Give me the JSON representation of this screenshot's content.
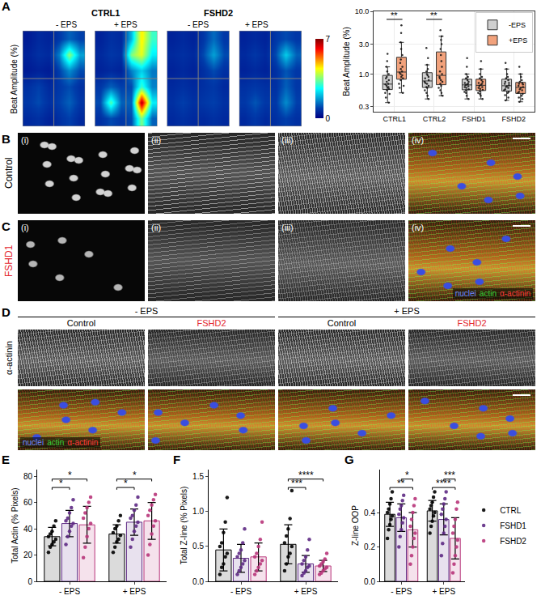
{
  "chart_data": [
    {
      "letter": "A",
      "type": "heatmap",
      "ylabel": "Beat Amplitude (%)",
      "zlim": [
        0,
        7
      ],
      "zticks": [
        0,
        7
      ],
      "groups": [
        {
          "title": "CTRL1",
          "panels": [
            {
              "title": "- EPS",
              "cells": [
                [
                  0.4,
                  0.6,
                  0.5,
                  0.8,
                  1.2,
                  0.9
                ],
                [
                  0.5,
                  0.7,
                  0.6,
                  1.5,
                  3.6,
                  1.8
                ],
                [
                  0.4,
                  0.5,
                  0.4,
                  0.9,
                  1.6,
                  1.0
                ],
                [
                  0.7,
                  0.9,
                  0.6,
                  0.8,
                  1.0,
                  0.7
                ],
                [
                  0.8,
                  1.0,
                  0.7,
                  0.9,
                  1.2,
                  0.8
                ],
                [
                  0.6,
                  0.7,
                  0.5,
                  0.7,
                  0.9,
                  0.6
                ]
              ]
            },
            {
              "title": "+ EPS",
              "cells": [
                [
                  0.5,
                  0.7,
                  0.6,
                  2.0,
                  4.5,
                  3.0
                ],
                [
                  0.6,
                  0.8,
                  0.7,
                  3.5,
                  4.2,
                  2.5
                ],
                [
                  0.5,
                  0.6,
                  0.5,
                  1.5,
                  2.2,
                  1.4
                ],
                [
                  0.8,
                  1.2,
                  0.9,
                  1.0,
                  3.0,
                  1.5
                ],
                [
                  1.0,
                  3.2,
                  1.2,
                  1.2,
                  6.8,
                  2.5
                ],
                [
                  0.7,
                  1.0,
                  0.8,
                  1.0,
                  3.5,
                  1.2
                ]
              ]
            }
          ]
        },
        {
          "title": "FSHD2",
          "panels": [
            {
              "title": "- EPS",
              "cells": [
                [
                  0.5,
                  0.6,
                  0.5,
                  0.8,
                  1.3,
                  0.8
                ],
                [
                  0.6,
                  0.7,
                  0.6,
                  1.0,
                  1.8,
                  1.0
                ],
                [
                  0.5,
                  0.6,
                  0.5,
                  0.7,
                  1.0,
                  0.7
                ],
                [
                  0.6,
                  0.7,
                  0.6,
                  0.7,
                  0.8,
                  0.6
                ],
                [
                  0.7,
                  0.9,
                  0.7,
                  0.8,
                  0.9,
                  0.7
                ],
                [
                  0.6,
                  0.7,
                  0.6,
                  0.6,
                  0.7,
                  0.6
                ]
              ]
            },
            {
              "title": "+ EPS",
              "cells": [
                [
                  0.5,
                  0.6,
                  0.5,
                  0.8,
                  1.0,
                  0.8
                ],
                [
                  0.6,
                  0.8,
                  0.6,
                  1.0,
                  2.2,
                  1.2
                ],
                [
                  0.5,
                  0.6,
                  0.5,
                  0.7,
                  1.1,
                  0.8
                ],
                [
                  0.7,
                  0.8,
                  0.7,
                  0.7,
                  1.2,
                  0.8
                ],
                [
                  0.8,
                  1.1,
                  0.8,
                  0.8,
                  1.6,
                  0.9
                ],
                [
                  0.6,
                  0.8,
                  0.6,
                  0.7,
                  0.9,
                  0.7
                ]
              ]
            }
          ]
        }
      ]
    },
    {
      "type": "box",
      "ylabel": "Beat Amplitude (%)",
      "log": "y",
      "grid": true,
      "legend": "upper right",
      "categories": [
        "CTRL1",
        "CTRL2",
        "FSHD1",
        "FSHD2"
      ],
      "ylim": [
        0.25,
        10
      ],
      "yticks": [
        0.3,
        {
          "value": 1,
          "label": "1.0"
        },
        {
          "value": 3,
          "label": "3.0"
        },
        {
          "value": 10,
          "label": "10.0"
        }
      ],
      "series": [
        {
          "name": "-EPS",
          "color": "#cfcfcf",
          "values": [
            [
              0.35,
              0.42,
              0.48,
              0.5,
              0.55,
              0.58,
              0.6,
              0.62,
              0.65,
              0.68,
              0.7,
              0.75,
              0.8,
              0.85,
              0.9,
              1.0,
              1.1,
              1.3,
              1.6,
              2.1
            ],
            [
              0.4,
              0.45,
              0.5,
              0.55,
              0.6,
              0.62,
              0.65,
              0.7,
              0.72,
              0.75,
              0.8,
              0.85,
              0.9,
              0.95,
              1.0,
              1.1,
              1.2,
              1.4,
              1.8,
              2.6
            ],
            [
              0.4,
              0.45,
              0.5,
              0.52,
              0.55,
              0.57,
              0.6,
              0.62,
              0.64,
              0.66,
              0.68,
              0.7,
              0.72,
              0.75,
              0.8,
              0.85,
              0.9,
              1.0,
              1.3,
              1.8
            ],
            [
              0.38,
              0.42,
              0.46,
              0.5,
              0.52,
              0.55,
              0.57,
              0.6,
              0.62,
              0.64,
              0.66,
              0.7,
              0.72,
              0.75,
              0.8,
              0.85,
              0.9,
              1.0,
              1.2,
              1.5
            ]
          ]
        },
        {
          "name": "+EPS",
          "color": "#f2a27c",
          "values": [
            [
              0.5,
              0.6,
              0.65,
              0.7,
              0.8,
              0.85,
              0.9,
              0.95,
              1.0,
              1.05,
              1.1,
              1.2,
              1.3,
              1.5,
              1.7,
              2.0,
              2.5,
              3.2,
              4.5,
              6.0
            ],
            [
              0.45,
              0.5,
              0.55,
              0.6,
              0.65,
              0.7,
              0.75,
              0.8,
              0.85,
              0.9,
              1.0,
              1.1,
              1.3,
              1.6,
              2.0,
              2.5,
              3.0,
              3.5,
              4.0,
              5.0
            ],
            [
              0.4,
              0.45,
              0.48,
              0.5,
              0.53,
              0.56,
              0.58,
              0.6,
              0.62,
              0.65,
              0.67,
              0.7,
              0.72,
              0.75,
              0.8,
              0.85,
              0.9,
              1.0,
              1.2,
              1.6
            ],
            [
              0.36,
              0.4,
              0.42,
              0.45,
              0.48,
              0.5,
              0.52,
              0.55,
              0.57,
              0.6,
              0.62,
              0.65,
              0.68,
              0.7,
              0.72,
              0.75,
              0.8,
              0.9,
              1.0,
              1.3
            ]
          ]
        }
      ],
      "significance": [
        {
          "category": "CTRL1",
          "label": "**"
        },
        {
          "category": "CTRL2",
          "label": "**"
        }
      ]
    },
    {
      "letter": "E",
      "type": "bar",
      "ylabel": "Total Actin (% Pixels)",
      "grid": false,
      "categories": [
        "- EPS",
        "+ EPS"
      ],
      "ylim": [
        0,
        85
      ],
      "yticks": [
        0,
        20,
        40,
        60,
        80
      ],
      "series": [
        {
          "name": "CTRL",
          "color": "#000000",
          "values": [
            34,
            36
          ],
          "error": [
            7,
            7
          ],
          "points": [
            [
              22,
              26,
              28,
              30,
              32,
              34,
              36,
              38,
              42,
              46
            ],
            [
              22,
              26,
              30,
              32,
              35,
              37,
              40,
              42,
              46,
              50
            ]
          ]
        },
        {
          "name": "FSHD1",
          "color": "#5e2a84",
          "values": [
            44,
            45
          ],
          "error": [
            10,
            10
          ],
          "points": [
            [
              28,
              34,
              38,
              42,
              44,
              46,
              48,
              52,
              56,
              62
            ],
            [
              26,
              32,
              38,
              42,
              45,
              48,
              50,
              54,
              58,
              64
            ]
          ]
        },
        {
          "name": "FSHD2",
          "color": "#b8357a",
          "values": [
            43,
            46
          ],
          "error": [
            14,
            14
          ],
          "points": [
            [
              18,
              26,
              34,
              40,
              44,
              48,
              52,
              56,
              60,
              64
            ],
            [
              20,
              28,
              36,
              42,
              46,
              50,
              54,
              58,
              62,
              66
            ]
          ]
        }
      ],
      "significance": [
        {
          "group": "- EPS",
          "from": "CTRL",
          "to": "FSHD1",
          "label": "*"
        },
        {
          "group": "- EPS",
          "from": "CTRL",
          "to": "FSHD2",
          "label": "*"
        },
        {
          "group": "+ EPS",
          "from": "CTRL",
          "to": "FSHD1",
          "label": "*"
        },
        {
          "group": "+ EPS",
          "from": "CTRL",
          "to": "FSHD2",
          "label": "*"
        }
      ]
    },
    {
      "letter": "F",
      "type": "bar",
      "ylabel": "Total Z-line (% Pixels)",
      "grid": false,
      "categories": [
        "- EPS",
        "+ EPS"
      ],
      "ylim": [
        0,
        1.6
      ],
      "yticks": [
        {
          "value": 0,
          "label": "0.0"
        },
        0.5,
        {
          "value": 1,
          "label": "1.0"
        },
        1.5
      ],
      "series": [
        {
          "name": "CTRL",
          "color": "#000000",
          "values": [
            0.45,
            0.53
          ],
          "error": [
            0.3,
            0.28
          ],
          "points": [
            [
              0.1,
              0.2,
              0.25,
              0.35,
              0.4,
              0.5,
              0.55,
              0.7,
              0.85,
              1.2
            ],
            [
              0.15,
              0.25,
              0.35,
              0.4,
              0.5,
              0.55,
              0.65,
              0.75,
              0.9,
              1.3
            ]
          ]
        },
        {
          "name": "FSHD1",
          "color": "#5e2a84",
          "values": [
            0.33,
            0.25
          ],
          "error": [
            0.2,
            0.12
          ],
          "points": [
            [
              0.1,
              0.15,
              0.2,
              0.25,
              0.3,
              0.35,
              0.4,
              0.45,
              0.55,
              0.75
            ],
            [
              0.08,
              0.12,
              0.15,
              0.2,
              0.22,
              0.25,
              0.3,
              0.35,
              0.45,
              0.6
            ]
          ]
        },
        {
          "name": "FSHD2",
          "color": "#b8357a",
          "values": [
            0.35,
            0.22
          ],
          "error": [
            0.2,
            0.08
          ],
          "points": [
            [
              0.1,
              0.15,
              0.2,
              0.25,
              0.3,
              0.35,
              0.4,
              0.5,
              0.6,
              0.85
            ],
            [
              0.1,
              0.12,
              0.15,
              0.18,
              0.2,
              0.22,
              0.25,
              0.28,
              0.32,
              0.4
            ]
          ]
        }
      ],
      "significance": [
        {
          "group": "+ EPS",
          "from": "CTRL",
          "to": "FSHD1",
          "label": "***"
        },
        {
          "group": "+ EPS",
          "from": "CTRL",
          "to": "FSHD2",
          "label": "****"
        }
      ]
    },
    {
      "letter": "G",
      "type": "bar",
      "ylabel": "Z-line OOP",
      "grid": false,
      "legend": "right",
      "categories": [
        "- EPS",
        "+ EPS"
      ],
      "ylim": [
        0,
        0.65
      ],
      "yticks": [
        {
          "value": 0,
          "label": "0.0"
        },
        0.2,
        0.4
      ],
      "series": [
        {
          "name": "CTRL",
          "color": "#000000",
          "values": [
            0.39,
            0.41
          ],
          "error": [
            0.07,
            0.06
          ],
          "points": [
            [
              0.25,
              0.3,
              0.33,
              0.36,
              0.38,
              0.4,
              0.42,
              0.45,
              0.48,
              0.52
            ],
            [
              0.28,
              0.32,
              0.35,
              0.38,
              0.4,
              0.42,
              0.44,
              0.46,
              0.49,
              0.52
            ]
          ]
        },
        {
          "name": "FSHD1",
          "color": "#5e2a84",
          "values": [
            0.37,
            0.36
          ],
          "error": [
            0.08,
            0.09
          ],
          "points": [
            [
              0.2,
              0.26,
              0.3,
              0.34,
              0.37,
              0.39,
              0.42,
              0.44,
              0.47,
              0.5
            ],
            [
              0.15,
              0.22,
              0.28,
              0.32,
              0.36,
              0.39,
              0.42,
              0.45,
              0.48,
              0.52
            ]
          ]
        },
        {
          "name": "FSHD2",
          "color": "#b8357a",
          "values": [
            0.3,
            0.25
          ],
          "error": [
            0.1,
            0.12
          ],
          "points": [
            [
              0.1,
              0.15,
              0.2,
              0.25,
              0.28,
              0.32,
              0.36,
              0.4,
              0.44,
              0.48
            ],
            [
              0.05,
              0.1,
              0.15,
              0.2,
              0.24,
              0.28,
              0.32,
              0.36,
              0.42,
              0.46
            ]
          ]
        }
      ],
      "significance": [
        {
          "group": "- EPS",
          "from": "CTRL",
          "to": "FSHD2",
          "label": "**"
        },
        {
          "group": "- EPS",
          "from": "FSHD1",
          "to": "FSHD2",
          "label": "*"
        },
        {
          "group": "+ EPS",
          "from": "CTRL",
          "to": "FSHD2",
          "label": "****"
        },
        {
          "group": "+ EPS",
          "from": "FSHD1",
          "to": "FSHD2",
          "label": "***"
        }
      ]
    }
  ],
  "images": {
    "B": {
      "letter": "B",
      "row_label": {
        "text": "Control",
        "color": "#000000"
      },
      "labels": [
        "(i)",
        "(ii)",
        "(iii)",
        "(iv)"
      ]
    },
    "C": {
      "letter": "C",
      "row_label": {
        "text": "FSHD1",
        "color": "#e3262e"
      },
      "labels": [
        "(i)",
        "(ii)",
        "(iii)",
        "(iv)"
      ],
      "channels": [
        {
          "text": "nuclei",
          "color": "#6f86ff"
        },
        {
          "text": "actin",
          "color": "#39d139"
        },
        {
          "text": "α-actinin",
          "color": "#ff3b3b"
        }
      ]
    },
    "D": {
      "letter": "D",
      "groups": [
        "- EPS",
        "+ EPS"
      ],
      "columns": [
        {
          "text": "Control",
          "color": "#000000"
        },
        {
          "text": "FSHD2",
          "color": "#e3262e"
        },
        {
          "text": "Control",
          "color": "#000000"
        },
        {
          "text": "FSHD2",
          "color": "#e3262e"
        }
      ],
      "row_label": "α-actinin",
      "channels": [
        {
          "text": "nuclei",
          "color": "#6f86ff"
        },
        {
          "text": "actin",
          "color": "#39d139"
        },
        {
          "text": "α-actinin",
          "color": "#ff3b3b"
        }
      ]
    }
  }
}
